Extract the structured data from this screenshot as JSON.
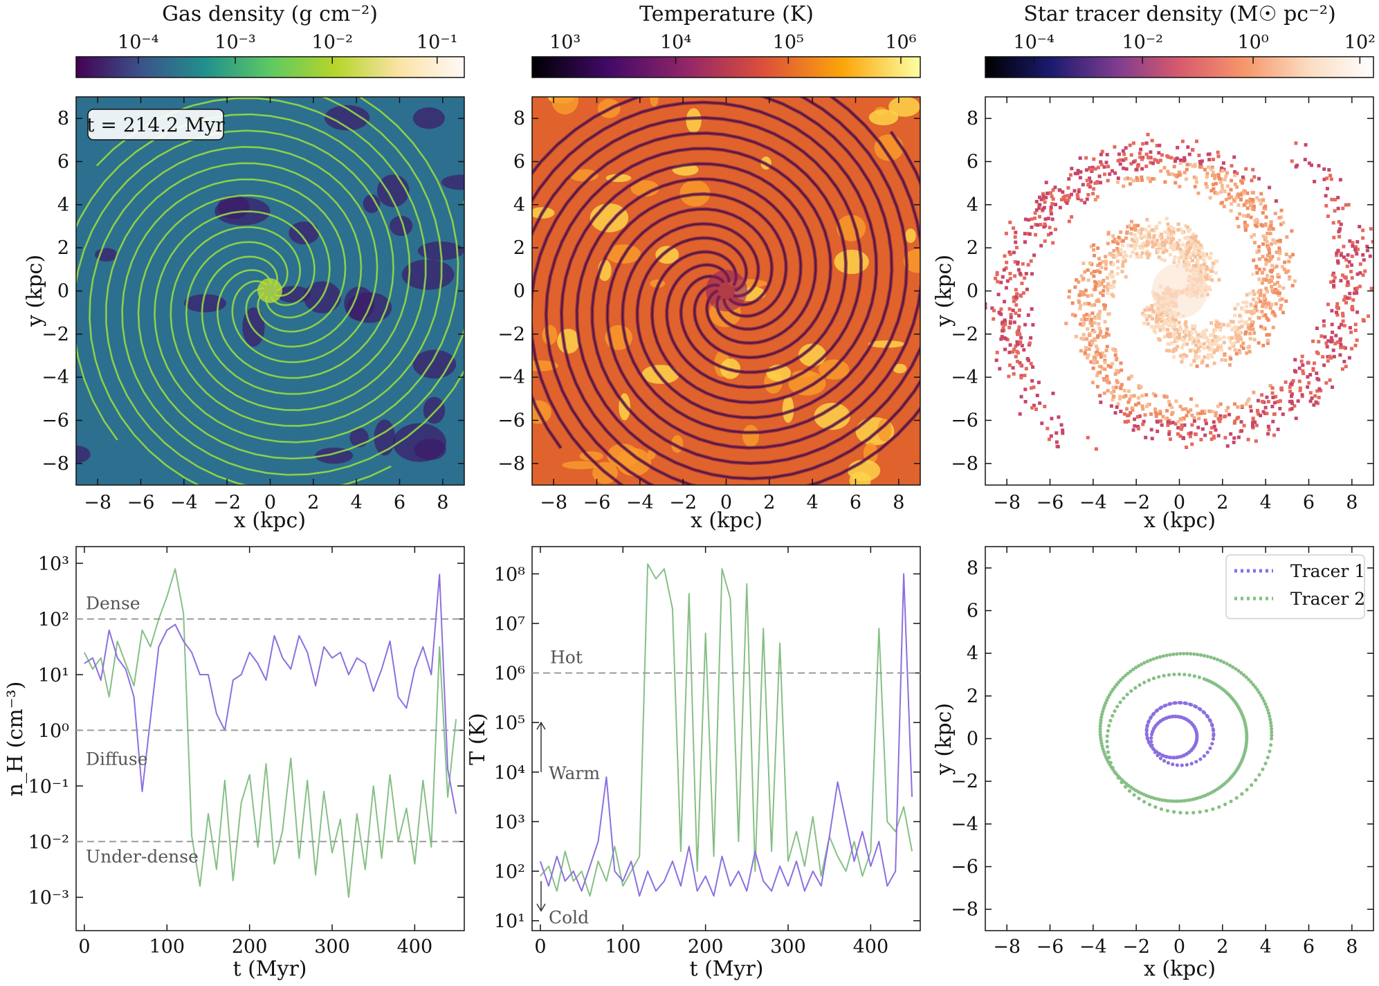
{
  "panels": [
    {
      "id": "gas_density_map",
      "colorbar_label": "Gas density (g cm⁻²)",
      "colorbar_ticks": [
        "10⁻⁴",
        "10⁻³",
        "10⁻²",
        "10⁻¹"
      ],
      "colormap": [
        "#440154",
        "#3b528b",
        "#21908d",
        "#5dc963",
        "#b5d52a",
        "#fbe3a5",
        "#fff8f8"
      ],
      "time_label": "t = 214.2 Myr",
      "xlabel": "x (kpc)",
      "ylabel": "y (kpc)"
    },
    {
      "id": "temperature_map",
      "colorbar_label": "Temperature (K)",
      "colorbar_ticks": [
        "10³",
        "10⁴",
        "10⁵",
        "10⁶"
      ],
      "colormap": [
        "#000004",
        "#420a68",
        "#932667",
        "#dd513a",
        "#fca50a",
        "#fcffa4"
      ],
      "xlabel": "x (kpc)"
    },
    {
      "id": "star_tracer_map",
      "colorbar_label": "Star tracer density (M☉ pc⁻²)",
      "colorbar_ticks": [
        "10⁻⁴",
        "10⁻²",
        "10⁰",
        "10²"
      ],
      "colormap": [
        "#000000",
        "#1a1a6e",
        "#7b3b8f",
        "#d85a6e",
        "#f6966a",
        "#fbdcc0",
        "#ffffff"
      ],
      "xlabel": "x (kpc)",
      "ylabel": "y (kpc)"
    }
  ],
  "map_axis_ticks": [
    "−8",
    "−6",
    "−4",
    "−2",
    "0",
    "2",
    "4",
    "6",
    "8"
  ],
  "tracer_colors": {
    "tracer1": "#8c6fe0",
    "tracer2": "#86bf86"
  },
  "chart_data": [
    {
      "type": "line",
      "xlabel": "t (Myr)",
      "ylabel": "n_H (cm⁻³)",
      "xlim": [
        -10,
        460
      ],
      "ylim_log10": [
        -3.6,
        3.3
      ],
      "yscale": "log",
      "x_ticks": [
        0,
        100,
        200,
        300,
        400
      ],
      "y_ticks": [
        "10⁻³",
        "10⁻²",
        "10⁻¹",
        "10⁰",
        "10¹",
        "10²",
        "10³"
      ],
      "thresholds": [
        {
          "value_log10": 2,
          "label": "Dense"
        },
        {
          "value_log10": 0,
          "label": "Diffuse"
        },
        {
          "value_log10": -2,
          "label": "Under-dense"
        }
      ],
      "series": [
        {
          "points": [
            [
              0,
              1.2
            ],
            [
              10,
              1.3
            ],
            [
              20,
              0.9
            ],
            [
              30,
              1.8
            ],
            [
              40,
              1.3
            ],
            [
              50,
              1.1
            ],
            [
              60,
              0.6
            ],
            [
              70,
              -1.1
            ],
            [
              80,
              0.2
            ],
            [
              90,
              1.5
            ],
            [
              100,
              1.8
            ],
            [
              110,
              1.9
            ],
            [
              120,
              1.6
            ],
            [
              130,
              1.4
            ],
            [
              140,
              1.0
            ],
            [
              150,
              1.0
            ],
            [
              160,
              0.3
            ],
            [
              170,
              0.0
            ],
            [
              180,
              0.9
            ],
            [
              190,
              1.0
            ],
            [
              200,
              1.4
            ],
            [
              210,
              1.2
            ],
            [
              220,
              0.9
            ],
            [
              230,
              1.7
            ],
            [
              240,
              1.3
            ],
            [
              250,
              1.1
            ],
            [
              260,
              1.7
            ],
            [
              270,
              1.4
            ],
            [
              280,
              0.8
            ],
            [
              290,
              1.5
            ],
            [
              300,
              1.3
            ],
            [
              310,
              1.4
            ],
            [
              320,
              1.0
            ],
            [
              330,
              1.3
            ],
            [
              340,
              1.2
            ],
            [
              350,
              0.7
            ],
            [
              360,
              1.1
            ],
            [
              370,
              1.6
            ],
            [
              380,
              0.6
            ],
            [
              390,
              0.4
            ],
            [
              400,
              1.1
            ],
            [
              410,
              1.5
            ],
            [
              420,
              1.0
            ],
            [
              430,
              2.8
            ],
            [
              440,
              -0.7
            ],
            [
              450,
              -1.5
            ]
          ]
        },
        {
          "points": [
            [
              0,
              1.4
            ],
            [
              10,
              1.1
            ],
            [
              20,
              1.3
            ],
            [
              30,
              0.6
            ],
            [
              40,
              1.6
            ],
            [
              50,
              1.2
            ],
            [
              60,
              0.8
            ],
            [
              70,
              1.8
            ],
            [
              80,
              1.5
            ],
            [
              90,
              2.0
            ],
            [
              100,
              2.4
            ],
            [
              110,
              2.9
            ],
            [
              120,
              2.1
            ],
            [
              130,
              -1.9
            ],
            [
              140,
              -2.8
            ],
            [
              150,
              -1.5
            ],
            [
              160,
              -2.5
            ],
            [
              170,
              -0.9
            ],
            [
              180,
              -2.7
            ],
            [
              190,
              -1.3
            ],
            [
              200,
              -0.8
            ],
            [
              210,
              -2.1
            ],
            [
              220,
              -0.6
            ],
            [
              230,
              -2.4
            ],
            [
              240,
              -1.8
            ],
            [
              250,
              -0.5
            ],
            [
              260,
              -2.3
            ],
            [
              270,
              -0.9
            ],
            [
              280,
              -2.6
            ],
            [
              290,
              -1.1
            ],
            [
              300,
              -2.2
            ],
            [
              310,
              -1.6
            ],
            [
              320,
              -3.0
            ],
            [
              330,
              -1.5
            ],
            [
              340,
              -2.5
            ],
            [
              350,
              -1.0
            ],
            [
              360,
              -2.3
            ],
            [
              370,
              -0.8
            ],
            [
              380,
              -2.0
            ],
            [
              390,
              -1.4
            ],
            [
              400,
              -2.4
            ],
            [
              410,
              -0.9
            ],
            [
              420,
              -2.1
            ],
            [
              430,
              1.5
            ],
            [
              440,
              -1.2
            ],
            [
              450,
              0.2
            ]
          ]
        }
      ]
    },
    {
      "type": "line",
      "xlabel": "t (Myr)",
      "ylabel": "T (K)",
      "xlim": [
        -10,
        460
      ],
      "ylim_log10": [
        0.8,
        8.55
      ],
      "yscale": "log",
      "x_ticks": [
        0,
        100,
        200,
        300,
        400
      ],
      "y_ticks": [
        "10¹",
        "10²",
        "10³",
        "10⁴",
        "10⁵",
        "10⁶",
        "10⁷",
        "10⁸"
      ],
      "thresholds": [
        {
          "value_log10": 6,
          "label": "Hot"
        }
      ],
      "annotations": [
        "Warm",
        "Cold"
      ],
      "series": [
        {
          "points": [
            [
              0,
              2.2
            ],
            [
              10,
              1.7
            ],
            [
              20,
              2.3
            ],
            [
              30,
              1.8
            ],
            [
              40,
              2.0
            ],
            [
              50,
              1.6
            ],
            [
              60,
              2.1
            ],
            [
              70,
              2.6
            ],
            [
              80,
              3.9
            ],
            [
              90,
              2.0
            ],
            [
              100,
              1.8
            ],
            [
              110,
              2.2
            ],
            [
              120,
              1.5
            ],
            [
              130,
              2.0
            ],
            [
              140,
              1.6
            ],
            [
              150,
              1.8
            ],
            [
              160,
              2.2
            ],
            [
              170,
              1.7
            ],
            [
              180,
              2.5
            ],
            [
              190,
              1.6
            ],
            [
              200,
              1.9
            ],
            [
              210,
              1.5
            ],
            [
              220,
              2.3
            ],
            [
              230,
              1.7
            ],
            [
              240,
              2.0
            ],
            [
              250,
              1.6
            ],
            [
              260,
              2.4
            ],
            [
              270,
              1.8
            ],
            [
              280,
              1.6
            ],
            [
              290,
              2.1
            ],
            [
              300,
              1.7
            ],
            [
              310,
              2.2
            ],
            [
              320,
              1.6
            ],
            [
              330,
              2.0
            ],
            [
              340,
              1.7
            ],
            [
              350,
              2.7
            ],
            [
              360,
              3.8
            ],
            [
              370,
              3.0
            ],
            [
              380,
              2.2
            ],
            [
              390,
              2.8
            ],
            [
              400,
              2.1
            ],
            [
              410,
              2.6
            ],
            [
              420,
              1.7
            ],
            [
              430,
              2.0
            ],
            [
              440,
              8.0
            ],
            [
              450,
              3.5
            ]
          ]
        },
        {
          "points": [
            [
              0,
              1.9
            ],
            [
              10,
              2.1
            ],
            [
              20,
              1.6
            ],
            [
              30,
              2.4
            ],
            [
              40,
              1.8
            ],
            [
              50,
              2.0
            ],
            [
              60,
              1.5
            ],
            [
              70,
              2.2
            ],
            [
              80,
              1.8
            ],
            [
              90,
              2.5
            ],
            [
              100,
              1.7
            ],
            [
              110,
              2.0
            ],
            [
              120,
              2.3
            ],
            [
              130,
              8.2
            ],
            [
              140,
              7.9
            ],
            [
              150,
              8.1
            ],
            [
              160,
              7.3
            ],
            [
              170,
              2.4
            ],
            [
              180,
              7.6
            ],
            [
              190,
              2.0
            ],
            [
              200,
              6.8
            ],
            [
              210,
              2.3
            ],
            [
              220,
              8.1
            ],
            [
              230,
              7.5
            ],
            [
              240,
              2.6
            ],
            [
              250,
              7.8
            ],
            [
              260,
              2.0
            ],
            [
              270,
              6.9
            ],
            [
              280,
              2.4
            ],
            [
              290,
              6.6
            ],
            [
              300,
              2.2
            ],
            [
              310,
              2.8
            ],
            [
              320,
              2.1
            ],
            [
              330,
              3.1
            ],
            [
              340,
              1.9
            ],
            [
              350,
              2.7
            ],
            [
              360,
              2.3
            ],
            [
              370,
              2.0
            ],
            [
              380,
              2.6
            ],
            [
              390,
              1.9
            ],
            [
              400,
              2.4
            ],
            [
              410,
              6.9
            ],
            [
              420,
              3.0
            ],
            [
              430,
              2.8
            ],
            [
              440,
              3.3
            ],
            [
              450,
              2.4
            ]
          ]
        }
      ]
    },
    {
      "type": "scatter",
      "xlabel": "x (kpc)",
      "ylabel": "y (kpc)",
      "xlim": [
        -9,
        9
      ],
      "ylim": [
        -9,
        9
      ],
      "x_ticks": [
        -8,
        -6,
        -4,
        -2,
        0,
        2,
        4,
        6,
        8
      ],
      "y_ticks": [
        -8,
        -6,
        -4,
        -2,
        0,
        2,
        4,
        6,
        8
      ],
      "legend_position": "top-right",
      "series": [
        {
          "name": "Tracer 1",
          "orbit": {
            "cx": -0.1,
            "cy": 0.15,
            "r_min": 0.9,
            "r_max": 1.7,
            "turns": 3.5,
            "points": 150
          }
        },
        {
          "name": "Tracer 2",
          "orbit": {
            "cx": 0.1,
            "cy": 0.15,
            "r_min": 3.0,
            "r_max": 4.2,
            "turns": 3.2,
            "points": 260
          }
        }
      ]
    }
  ]
}
